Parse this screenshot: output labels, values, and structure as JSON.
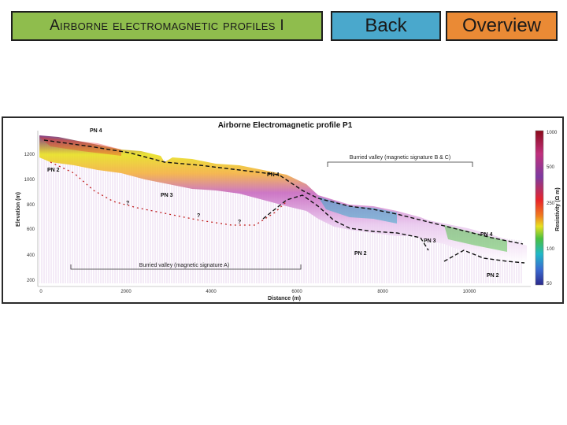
{
  "header": {
    "title_label": "Airborne electromagnetic profiles I",
    "back_label": "Back",
    "overview_label": "Overview"
  },
  "figure": {
    "title": "Airborne Electromagnetic profile P1",
    "x_label": "Distance (m)",
    "y_label": "Elevation (m)",
    "colorbar_label": "Resistivity (Ω m)",
    "x_ticks": [
      "0",
      "2000",
      "4000",
      "6000",
      "8000",
      "10000"
    ],
    "y_ticks": [
      "1200",
      "1000",
      "800",
      "600",
      "400",
      "200"
    ],
    "colorbar_ticks": [
      "1000",
      "500",
      "250",
      "100",
      "50"
    ],
    "annotations": {
      "pn4_a": "PN 4",
      "pn2_a": "PN 2",
      "pn3_a": "PN 3",
      "pn4_b": "PN 4",
      "pn3_b": "PN 3",
      "pn2_b": "PN 2",
      "pn4_c": "PN 4",
      "pn2_c": "PN 2",
      "q1": "?",
      "q2": "?",
      "q3": "?",
      "valley_a": "Burried valley (magnetic signature A)",
      "valley_bc": "Burried valley (magnetic signature B & C)"
    },
    "colors": {
      "high": "#8b0a1a",
      "mid": "#e8e020",
      "low": "#2c2a8c"
    }
  }
}
